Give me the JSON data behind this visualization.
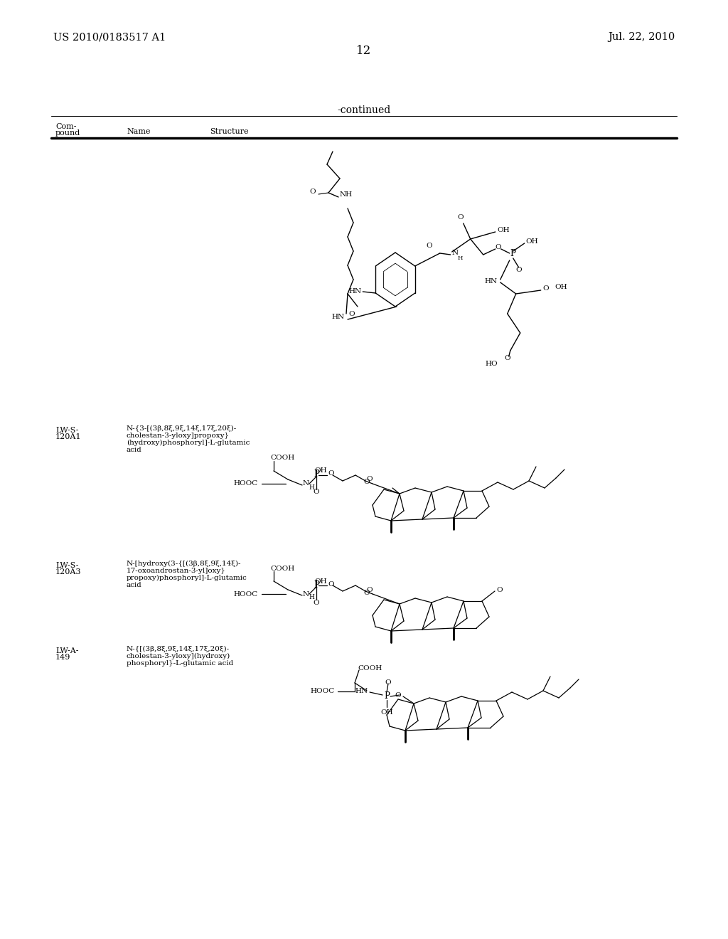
{
  "background": "#ffffff",
  "header_left": "US 2010/0183517 A1",
  "header_right": "Jul. 22, 2010",
  "page_num": "12",
  "continued": "-continued",
  "col_compound": "Com-\npound",
  "col_name": "Name",
  "col_structure": "Structure",
  "compound_ids": [
    "LW-S-\n120A1",
    "LW-S-\n120A3",
    "LW-A-\n149"
  ],
  "compound_names": [
    "N-{3-[(3β,8ξ,9ξ,14ξ,17ξ,20ξ)-\ncholestan-3-yloxy]propoxy}\n(hydroxy)phosphoryl]-L-glutamic\nacid",
    "N-[hydroxy(3-{[(3β,8ξ,9ξ,14ξ)-\n17-oxoandrostan-3-yl]oxy}\npropoxy)phosphoryl]-L-glutamic\nacid",
    "N-{[(3β,8ξ,9ξ,14ξ,17ξ,20ξ)-\ncholestan-3-yloxy](hydroxy)\nphosphoryl}-L-glutamic acid"
  ]
}
